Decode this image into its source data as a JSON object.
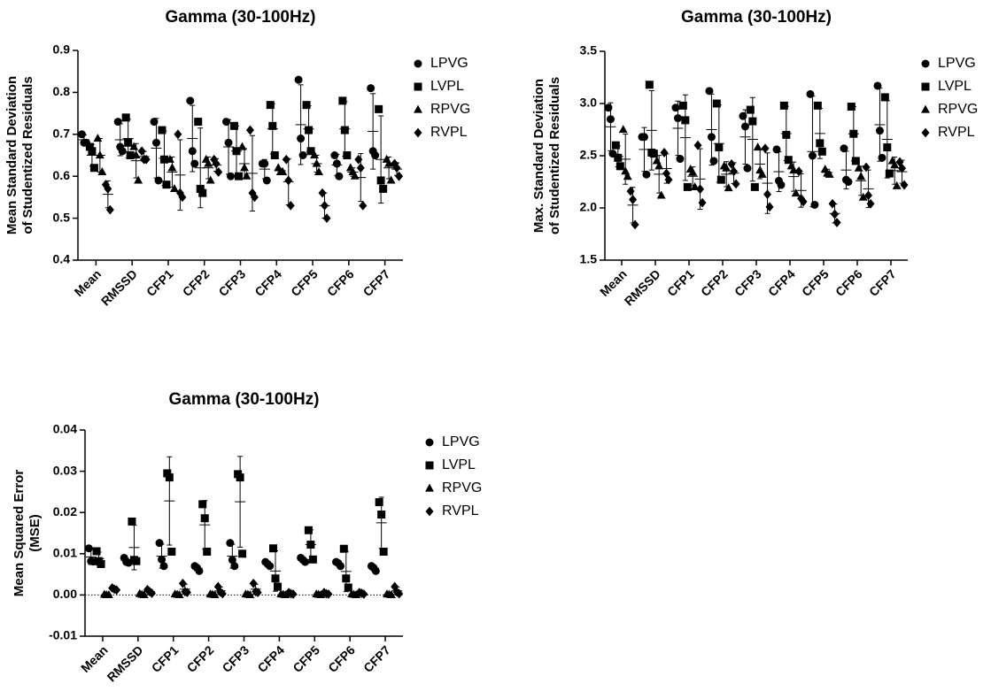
{
  "chart_data": [
    {
      "type": "dot",
      "title": "Gamma (30-100Hz)",
      "ylabel": [
        "Mean Standard Deviation",
        "of Studentized Residuals"
      ],
      "categories": [
        "Mean",
        "RMSSD",
        "CFP1",
        "CFP2",
        "CFP3",
        "CFP4",
        "CFP5",
        "CFP6",
        "CFP7"
      ],
      "ylim": [
        0.4,
        0.9
      ],
      "yticks": [
        0.4,
        0.5,
        0.6,
        0.7,
        0.8,
        0.9
      ],
      "series": [
        {
          "name": "LPVG",
          "marker": "circle",
          "color": "#000000",
          "values": [
            [
              0.7,
              0.68,
              0.68
            ],
            [
              0.73,
              0.67,
              0.66
            ],
            [
              0.73,
              0.68,
              0.59
            ],
            [
              0.78,
              0.66,
              0.63
            ],
            [
              0.73,
              0.68,
              0.6
            ],
            [
              0.63,
              0.63,
              0.59
            ],
            [
              0.83,
              0.69,
              0.65
            ],
            [
              0.65,
              0.63,
              0.6
            ],
            [
              0.81,
              0.66,
              0.65
            ]
          ],
          "means": [
            0.687,
            0.687,
            0.667,
            0.69,
            0.67,
            0.617,
            0.723,
            0.627,
            0.707
          ],
          "sd": [
            0.012,
            0.038,
            0.071,
            0.079,
            0.065,
            0.023,
            0.095,
            0.025,
            0.09
          ]
        },
        {
          "name": "LVPL",
          "marker": "square",
          "color": "#000000",
          "values": [
            [
              0.67,
              0.66,
              0.62
            ],
            [
              0.74,
              0.68,
              0.65
            ],
            [
              0.71,
              0.64,
              0.58
            ],
            [
              0.73,
              0.57,
              0.56
            ],
            [
              0.72,
              0.66,
              0.6
            ],
            [
              0.77,
              0.72,
              0.65
            ],
            [
              0.77,
              0.71,
              0.66
            ],
            [
              0.78,
              0.71,
              0.65
            ],
            [
              0.76,
              0.59,
              0.57
            ]
          ],
          "means": [
            0.65,
            0.69,
            0.643,
            0.62,
            0.66,
            0.713,
            0.713,
            0.713,
            0.64
          ],
          "sd": [
            0.026,
            0.046,
            0.065,
            0.095,
            0.06,
            0.06,
            0.055,
            0.065,
            0.104
          ]
        },
        {
          "name": "RPVG",
          "marker": "triangle",
          "color": "#000000",
          "values": [
            [
              0.69,
              0.65,
              0.61
            ],
            [
              0.67,
              0.65,
              0.59
            ],
            [
              0.64,
              0.62,
              0.57
            ],
            [
              0.64,
              0.63,
              0.59
            ],
            [
              0.67,
              0.62,
              0.6
            ],
            [
              0.62,
              0.61,
              0.61
            ],
            [
              0.65,
              0.63,
              0.61
            ],
            [
              0.62,
              0.61,
              0.6
            ],
            [
              0.64,
              0.63,
              0.59
            ]
          ],
          "means": [
            0.65,
            0.637,
            0.61,
            0.62,
            0.63,
            0.613,
            0.63,
            0.61,
            0.62
          ],
          "sd": [
            0.04,
            0.041,
            0.036,
            0.026,
            0.036,
            0.006,
            0.02,
            0.01,
            0.026
          ]
        },
        {
          "name": "RVPL",
          "marker": "diamond",
          "color": "#000000",
          "values": [
            [
              0.58,
              0.57,
              0.52
            ],
            [
              0.66,
              0.64,
              0.64
            ],
            [
              0.7,
              0.56,
              0.55
            ],
            [
              0.64,
              0.63,
              0.61
            ],
            [
              0.71,
              0.56,
              0.55
            ],
            [
              0.64,
              0.59,
              0.53
            ],
            [
              0.56,
              0.53,
              0.5
            ],
            [
              0.64,
              0.62,
              0.53
            ],
            [
              0.63,
              0.62,
              0.6
            ]
          ],
          "means": [
            0.557,
            0.647,
            0.603,
            0.627,
            0.607,
            0.587,
            0.53,
            0.597,
            0.617
          ],
          "sd": [
            0.032,
            0.012,
            0.084,
            0.015,
            0.09,
            0.055,
            0.03,
            0.057,
            0.015
          ]
        }
      ]
    },
    {
      "type": "dot",
      "title": "Gamma (30-100Hz)",
      "ylabel": [
        "Max. Standard Deviation",
        "of Studentized Residuals"
      ],
      "categories": [
        "Mean",
        "RMSSD",
        "CFP1",
        "CFP2",
        "CFP3",
        "CFP4",
        "CFP5",
        "CFP6",
        "CFP7"
      ],
      "ylim": [
        1.5,
        3.5
      ],
      "yticks": [
        1.5,
        {
          "value": 2,
          "label": "2.0"
        },
        2.5,
        {
          "value": 3,
          "label": "3.0"
        },
        3.5
      ],
      "series": [
        {
          "name": "LPVG",
          "marker": "circle",
          "color": "#000000",
          "values": [
            [
              2.96,
              2.85,
              2.52
            ],
            [
              2.68,
              2.68,
              2.32
            ],
            [
              2.96,
              2.86,
              2.47
            ],
            [
              3.12,
              2.68,
              2.45
            ],
            [
              2.88,
              2.78,
              2.38
            ],
            [
              2.56,
              2.26,
              2.22
            ],
            [
              3.09,
              2.5,
              2.03
            ],
            [
              2.57,
              2.27,
              2.25
            ],
            [
              3.17,
              2.74,
              2.48
            ]
          ],
          "means": [
            2.777,
            2.56,
            2.763,
            2.75,
            2.68,
            2.347,
            2.54,
            2.363,
            2.797
          ],
          "sd": [
            0.23,
            0.21,
            0.26,
            0.34,
            0.26,
            0.19,
            0.53,
            0.18,
            0.35
          ]
        },
        {
          "name": "LVPL",
          "marker": "square",
          "color": "#000000",
          "values": [
            [
              2.6,
              2.48,
              2.4
            ],
            [
              3.18,
              2.53,
              2.52
            ],
            [
              2.98,
              2.84,
              2.2
            ],
            [
              3.0,
              2.58,
              2.27
            ],
            [
              2.94,
              2.83,
              2.2
            ],
            [
              2.98,
              2.7,
              2.46
            ],
            [
              2.98,
              2.62,
              2.54
            ],
            [
              2.97,
              2.71,
              2.45
            ],
            [
              3.06,
              2.58,
              2.33
            ]
          ],
          "means": [
            2.493,
            2.743,
            2.673,
            2.617,
            2.657,
            2.713,
            2.713,
            2.71,
            2.657
          ],
          "sd": [
            0.1,
            0.38,
            0.41,
            0.37,
            0.4,
            0.26,
            0.24,
            0.26,
            0.37
          ]
        },
        {
          "name": "RPVG",
          "marker": "triangle",
          "color": "#000000",
          "values": [
            [
              2.75,
              2.35,
              2.3
            ],
            [
              2.45,
              2.4,
              2.12
            ],
            [
              2.37,
              2.34,
              2.2
            ],
            [
              2.4,
              2.38,
              2.19
            ],
            [
              2.58,
              2.36,
              2.32
            ],
            [
              2.4,
              2.36,
              2.14
            ],
            [
              2.37,
              2.33,
              2.32
            ],
            [
              2.38,
              2.3,
              2.1
            ],
            [
              2.45,
              2.41,
              2.21
            ]
          ],
          "means": [
            2.467,
            2.323,
            2.303,
            2.323,
            2.42,
            2.3,
            2.34,
            2.26,
            2.357
          ],
          "sd": [
            0.24,
            0.18,
            0.09,
            0.12,
            0.14,
            0.14,
            0.03,
            0.14,
            0.13
          ]
        },
        {
          "name": "RVPL",
          "marker": "diamond",
          "color": "#000000",
          "values": [
            [
              2.16,
              2.08,
              1.84
            ],
            [
              2.53,
              2.33,
              2.27
            ],
            [
              2.6,
              2.18,
              2.05
            ],
            [
              2.42,
              2.35,
              2.23
            ],
            [
              2.57,
              2.13,
              2.01
            ],
            [
              2.35,
              2.09,
              2.06
            ],
            [
              2.04,
              1.94,
              1.86
            ],
            [
              2.39,
              2.12,
              2.04
            ],
            [
              2.44,
              2.38,
              2.22
            ]
          ],
          "means": [
            2.027,
            2.377,
            2.277,
            2.333,
            2.237,
            2.167,
            1.947,
            2.183,
            2.347
          ],
          "sd": [
            0.17,
            0.14,
            0.29,
            0.1,
            0.29,
            0.16,
            0.09,
            0.18,
            0.11
          ]
        }
      ]
    },
    {
      "type": "dot",
      "title": "Gamma (30-100Hz)",
      "ylabel": [
        "Mean Squared Error",
        "(MSE)"
      ],
      "categories": [
        "Mean",
        "RMSSD",
        "CFP1",
        "CFP2",
        "CFP3",
        "CFP4",
        "CFP5",
        "CFP6",
        "CFP7"
      ],
      "ylim": [
        -0.01,
        0.04
      ],
      "yticks": [
        {
          "value": -0.01,
          "label": "-0.01"
        },
        {
          "value": 0,
          "label": "0.00"
        },
        {
          "value": 0.01,
          "label": "0.01"
        },
        {
          "value": 0.02,
          "label": "0.02"
        },
        {
          "value": 0.03,
          "label": "0.03"
        },
        {
          "value": 0.04,
          "label": "0.04"
        }
      ],
      "hline": 0,
      "series": [
        {
          "name": "LPVG",
          "marker": "circle",
          "color": "#000000",
          "values": [
            [
              0.0113,
              0.0082,
              0.0081
            ],
            [
              0.009,
              0.008,
              0.0078
            ],
            [
              0.0126,
              0.0086,
              0.007
            ],
            [
              0.007,
              0.0066,
              0.0058
            ],
            [
              0.0126,
              0.0085,
              0.007
            ],
            [
              0.008,
              0.0075,
              0.007
            ],
            [
              0.009,
              0.0085,
              0.008
            ],
            [
              0.008,
              0.0077,
              0.007
            ],
            [
              0.007,
              0.0066,
              0.0058
            ]
          ],
          "means": [
            0.0092,
            0.0083,
            0.0094,
            0.0065,
            0.0094,
            0.0075,
            0.0085,
            0.0076,
            0.0065
          ],
          "sd": [
            0.0018,
            0.0006,
            0.0029,
            0.0006,
            0.0029,
            0.0005,
            0.0005,
            0.0005,
            0.0006
          ]
        },
        {
          "name": "LVPL",
          "marker": "square",
          "color": "#000000",
          "values": [
            [
              0.0106,
              0.0082,
              0.0075
            ],
            [
              0.0178,
              0.0085,
              0.0082
            ],
            [
              0.0295,
              0.0285,
              0.0105
            ],
            [
              0.022,
              0.0186,
              0.0105
            ],
            [
              0.0293,
              0.0285,
              0.01
            ],
            [
              0.0113,
              0.004,
              0.002
            ],
            [
              0.0157,
              0.0122,
              0.0086
            ],
            [
              0.0112,
              0.004,
              0.0018
            ],
            [
              0.0225,
              0.0195,
              0.0105
            ]
          ],
          "means": [
            0.0088,
            0.0115,
            0.0228,
            0.017,
            0.0226,
            0.0058,
            0.0122,
            0.0057,
            0.0175
          ],
          "sd": [
            0.0016,
            0.0054,
            0.0107,
            0.0059,
            0.011,
            0.0049,
            0.0036,
            0.0049,
            0.0062
          ]
        },
        {
          "name": "RPVG",
          "marker": "triangle",
          "color": "#000000",
          "values": [
            [
              0.0001,
              0,
              0
            ],
            [
              0.0003,
              0.0001,
              0
            ],
            [
              0.0002,
              0.0001,
              0
            ],
            [
              0.0002,
              0.0001,
              0
            ],
            [
              0.0002,
              0.0001,
              0
            ],
            [
              0.0002,
              0.0001,
              0
            ],
            [
              0.0002,
              0.0001,
              0
            ],
            [
              0.0002,
              0.0001,
              0
            ],
            [
              0.0002,
              0.0001,
              0
            ]
          ],
          "means": [
            3e-05,
            0.0001,
            0.0001,
            0.0001,
            0.0001,
            0.0001,
            0.0001,
            0.0001,
            0.0001
          ],
          "sd": [
            0.0001,
            0.0001,
            0.0001,
            0.0001,
            0.0001,
            0.0001,
            0.0001,
            0.0001,
            0.0001
          ]
        },
        {
          "name": "RVPL",
          "marker": "diamond",
          "color": "#000000",
          "values": [
            [
              0.0017,
              0.0014,
              0.0012
            ],
            [
              0.0013,
              0.0008,
              0.0004
            ],
            [
              0.0028,
              0.0008,
              0.0006
            ],
            [
              0.002,
              0.0007,
              0.0003
            ],
            [
              0.0028,
              0.0008,
              0.0006
            ],
            [
              0.0006,
              0.0003,
              0.0002
            ],
            [
              0.0006,
              0.0003,
              0.0002
            ],
            [
              0.0006,
              0.0004,
              0.0002
            ],
            [
              0.002,
              0.0007,
              0.0003
            ]
          ],
          "means": [
            0.0014,
            0.0008,
            0.0014,
            0.001,
            0.0014,
            0.0004,
            0.0004,
            0.0004,
            0.001
          ],
          "sd": [
            0.0003,
            0.0005,
            0.0012,
            0.0009,
            0.0012,
            0.0002,
            0.0002,
            0.0002,
            0.0009
          ]
        }
      ]
    }
  ]
}
